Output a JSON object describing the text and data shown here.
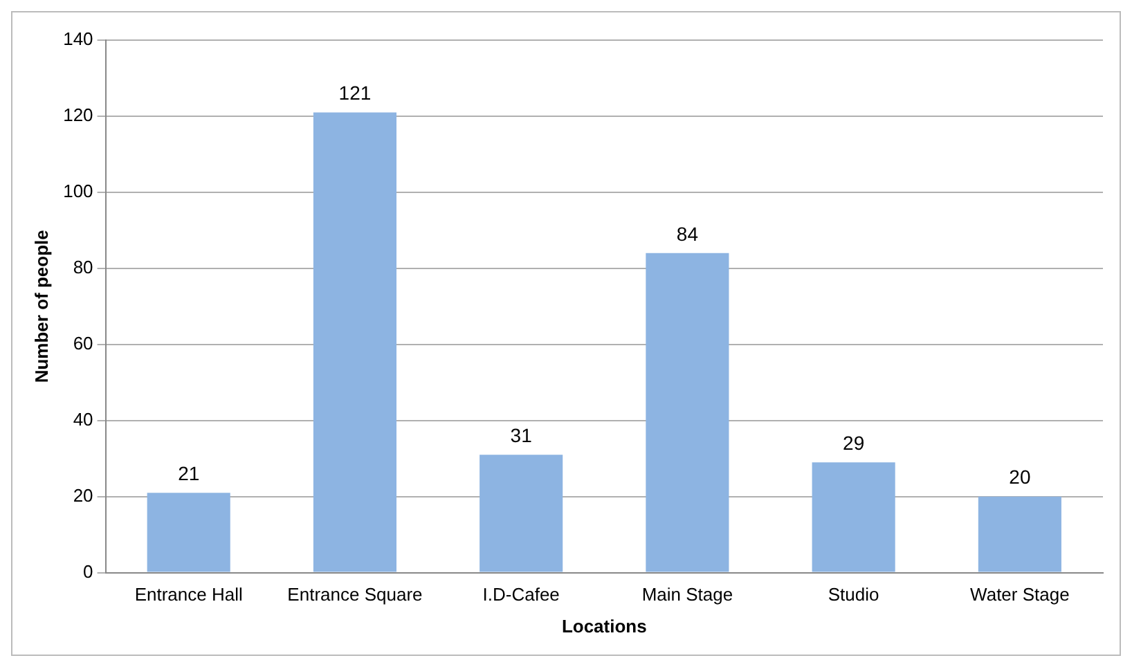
{
  "chart_data": {
    "type": "bar",
    "xlabel": "Locations",
    "ylabel": "Number of people",
    "categories": [
      "Entrance Hall",
      "Entrance Square",
      "I.D-Cafee",
      "Main Stage",
      "Studio",
      "Water Stage"
    ],
    "values": [
      21,
      121,
      31,
      84,
      29,
      20
    ],
    "color": "#8db4e2",
    "ylim": [
      0,
      140
    ],
    "yticks": [
      0,
      20,
      40,
      60,
      80,
      100,
      120,
      140
    ],
    "grid": "y",
    "data_labels": true,
    "legend": false
  }
}
